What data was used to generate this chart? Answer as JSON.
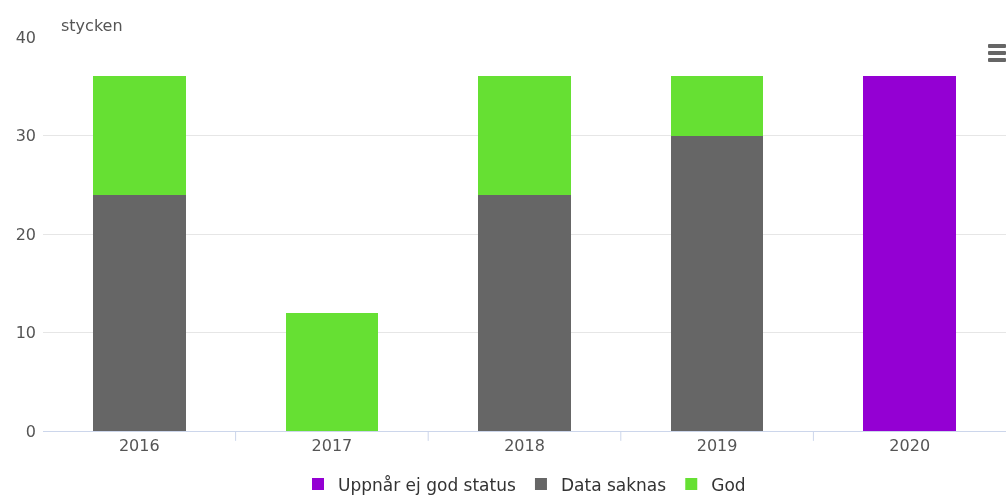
{
  "chart_data": {
    "type": "bar",
    "ylabel": "stycken",
    "categories": [
      "2016",
      "2017",
      "2018",
      "2019",
      "2020"
    ],
    "series": [
      {
        "name": "Uppnår ej god status",
        "color": "#9400d3",
        "values": [
          null,
          null,
          null,
          null,
          36
        ]
      },
      {
        "name": "Data saknas",
        "color": "#666666",
        "values": [
          24,
          null,
          24,
          30,
          null
        ]
      },
      {
        "name": "God",
        "color": "#66e033",
        "values": [
          12,
          12,
          12,
          6,
          null
        ]
      }
    ],
    "stacked": true,
    "ylim": [
      0,
      40
    ],
    "yticks": [
      0,
      10,
      20,
      30,
      40
    ],
    "grid": "y",
    "legend": "bottom"
  }
}
